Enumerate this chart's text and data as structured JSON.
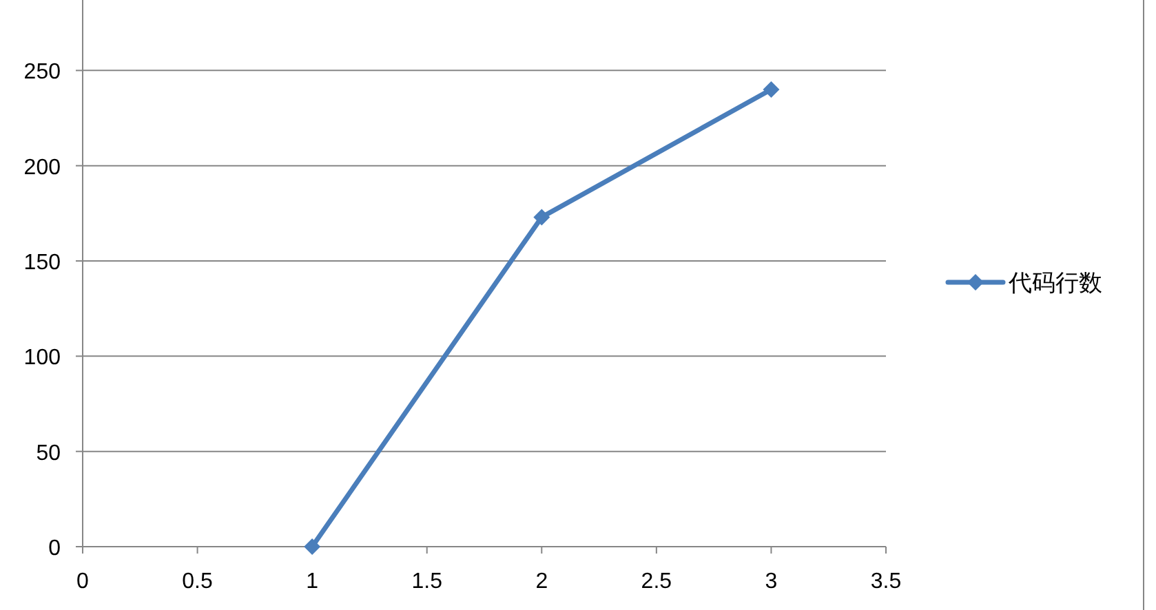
{
  "chart_data": {
    "type": "line",
    "x": [
      1,
      2,
      3
    ],
    "series": [
      {
        "name": "代码行数",
        "color": "#4a7ebb",
        "values": [
          0,
          173,
          240
        ]
      }
    ],
    "xlim": [
      0,
      3.5
    ],
    "xticks": [
      0,
      0.5,
      1,
      1.5,
      2,
      2.5,
      3,
      3.5
    ],
    "ylim": [
      0,
      287
    ],
    "yticks": [
      0,
      50,
      100,
      150,
      200,
      250
    ],
    "grid": "y",
    "legend": "right",
    "marker": "diamond",
    "line_style": "solid"
  }
}
